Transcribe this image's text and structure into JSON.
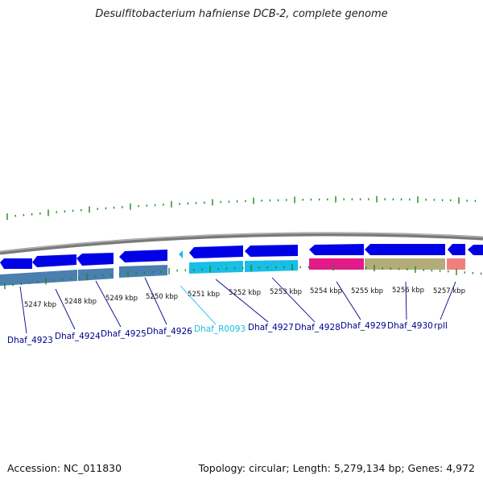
{
  "title": "Desulfitobacterium hafniense DCB-2, complete genome",
  "accession": "Accession: NC_011830",
  "topology": "Topology: circular; Length: 5,279,134 bp; Genes: 4,972",
  "colors": {
    "backbone": "#808080",
    "forward_gene": "#0000e6",
    "reverse_gene": "#0000e6",
    "cds_reverse": "#4a7fb0",
    "cds_forward": "#19bde6",
    "rna": "#19bde6",
    "pseudo": "#e6198c",
    "other": "#b3ac7a",
    "rrna": "#f08080",
    "ticks": "#1a8a1a",
    "label": "#00008b",
    "label_rna": "#19bde6"
  },
  "kbp_labels": [
    "5247 kbp",
    "5248 kbp",
    "5249 kbp",
    "5250 kbp",
    "5251 kbp",
    "5252 kbp",
    "5253 kbp",
    "5254 kbp",
    "5255 kbp",
    "5256 kbp",
    "5257 kbp"
  ],
  "genes": [
    {
      "name": "Dhaf_4923",
      "type": "cds"
    },
    {
      "name": "Dhaf_4924",
      "type": "cds"
    },
    {
      "name": "Dhaf_4925",
      "type": "cds"
    },
    {
      "name": "Dhaf_4926",
      "type": "cds"
    },
    {
      "name": "Dhaf_R0093",
      "type": "rna"
    },
    {
      "name": "Dhaf_4927",
      "type": "cds"
    },
    {
      "name": "Dhaf_4928",
      "type": "cds"
    },
    {
      "name": "Dhaf_4929",
      "type": "cds"
    },
    {
      "name": "Dhaf_4930",
      "type": "cds"
    },
    {
      "name": "rplI",
      "type": "cds"
    }
  ]
}
